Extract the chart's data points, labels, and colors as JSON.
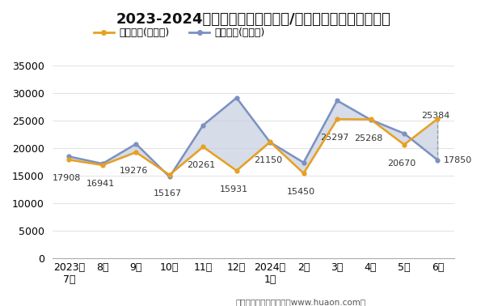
{
  "title": "2023-2024年包头市（境内目的地/货源地）进、出口额统计",
  "x_labels": [
    "2023年\n7月",
    "8月",
    "9月",
    "10月",
    "11月",
    "12月",
    "2024年\n1月",
    "2月",
    "3月",
    "4月",
    "5月",
    "6月"
  ],
  "export_values": [
    17908,
    16941,
    19276,
    15167,
    20261,
    15931,
    21150,
    15450,
    25297,
    25268,
    20670,
    25384
  ],
  "import_values": [
    18500,
    17200,
    20800,
    14800,
    24200,
    29200,
    21100,
    17400,
    28700,
    25200,
    22700,
    17850
  ],
  "export_label": "出口总额(万美元)",
  "import_label": "进口总额(万美元)",
  "export_color": "#E8A020",
  "import_color": "#7B91C0",
  "fill_color": "#C5CEDF",
  "ylim": [
    0,
    37000
  ],
  "yticks": [
    0,
    5000,
    10000,
    15000,
    20000,
    25000,
    30000,
    35000
  ],
  "footnote": "制图：华经产业研究院（www.huaon.com）",
  "bg_color": "#FFFFFF",
  "plot_bg_color": "#FFFFFF",
  "title_fontsize": 13,
  "label_fontsize": 9,
  "tick_fontsize": 9,
  "annotation_fontsize": 8
}
